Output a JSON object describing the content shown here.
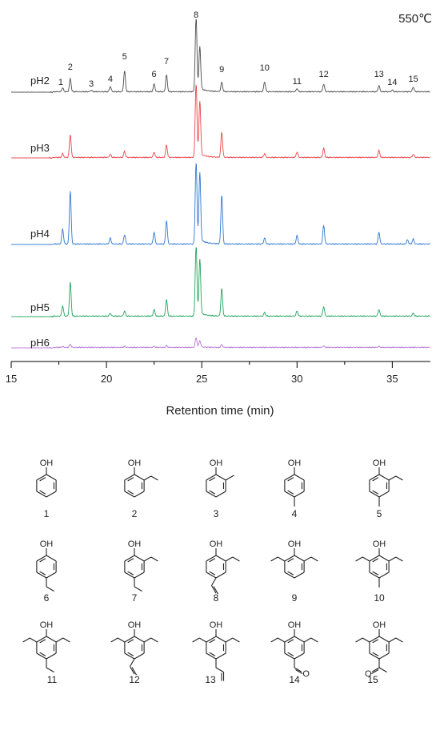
{
  "chart_data": {
    "type": "line",
    "title": "550℃",
    "xlabel": "Retention time (min)",
    "ylabel": "",
    "xlim": [
      15,
      37
    ],
    "x_ticks": [
      15,
      20,
      25,
      30,
      35
    ],
    "grid": false,
    "legend": "labels beside each trace",
    "series": [
      {
        "name": "pH2",
        "color": "#4d4d4d",
        "peaks": [
          {
            "x": 17.7,
            "h": 0.05
          },
          {
            "x": 18.1,
            "h": 0.17
          },
          {
            "x": 19.2,
            "h": 0.02
          },
          {
            "x": 20.2,
            "h": 0.07
          },
          {
            "x": 20.95,
            "h": 0.27
          },
          {
            "x": 22.5,
            "h": 0.1
          },
          {
            "x": 23.15,
            "h": 0.22
          },
          {
            "x": 24.7,
            "h": 0.95
          },
          {
            "x": 24.9,
            "h": 0.55
          },
          {
            "x": 26.05,
            "h": 0.12
          },
          {
            "x": 28.3,
            "h": 0.13
          },
          {
            "x": 30.0,
            "h": 0.04
          },
          {
            "x": 31.4,
            "h": 0.1
          },
          {
            "x": 34.3,
            "h": 0.08
          },
          {
            "x": 35.0,
            "h": 0.02
          },
          {
            "x": 36.1,
            "h": 0.06
          }
        ]
      },
      {
        "name": "pH3",
        "color": "#e8454a",
        "peaks": [
          {
            "x": 17.7,
            "h": 0.05
          },
          {
            "x": 18.1,
            "h": 0.3
          },
          {
            "x": 20.2,
            "h": 0.04
          },
          {
            "x": 20.95,
            "h": 0.08
          },
          {
            "x": 22.5,
            "h": 0.07
          },
          {
            "x": 23.15,
            "h": 0.16
          },
          {
            "x": 24.7,
            "h": 0.95
          },
          {
            "x": 24.9,
            "h": 0.7
          },
          {
            "x": 26.05,
            "h": 0.33
          },
          {
            "x": 28.3,
            "h": 0.05
          },
          {
            "x": 30.0,
            "h": 0.07
          },
          {
            "x": 31.4,
            "h": 0.12
          },
          {
            "x": 34.3,
            "h": 0.09
          },
          {
            "x": 36.1,
            "h": 0.04
          }
        ]
      },
      {
        "name": "pH4",
        "color": "#2e78d2",
        "peaks": [
          {
            "x": 17.7,
            "h": 0.18
          },
          {
            "x": 18.1,
            "h": 0.63
          },
          {
            "x": 20.2,
            "h": 0.07
          },
          {
            "x": 20.95,
            "h": 0.11
          },
          {
            "x": 22.5,
            "h": 0.14
          },
          {
            "x": 23.15,
            "h": 0.28
          },
          {
            "x": 24.7,
            "h": 0.95
          },
          {
            "x": 24.9,
            "h": 0.8
          },
          {
            "x": 26.05,
            "h": 0.58
          },
          {
            "x": 28.3,
            "h": 0.07
          },
          {
            "x": 30.0,
            "h": 0.1
          },
          {
            "x": 31.4,
            "h": 0.22
          },
          {
            "x": 34.3,
            "h": 0.14
          },
          {
            "x": 35.8,
            "h": 0.05
          },
          {
            "x": 36.1,
            "h": 0.06
          }
        ]
      },
      {
        "name": "pH5",
        "color": "#22a55c",
        "peaks": [
          {
            "x": 17.7,
            "h": 0.14
          },
          {
            "x": 18.1,
            "h": 0.47
          },
          {
            "x": 20.2,
            "h": 0.04
          },
          {
            "x": 20.95,
            "h": 0.07
          },
          {
            "x": 22.5,
            "h": 0.09
          },
          {
            "x": 23.15,
            "h": 0.23
          },
          {
            "x": 24.7,
            "h": 0.95
          },
          {
            "x": 24.9,
            "h": 0.75
          },
          {
            "x": 26.05,
            "h": 0.38
          },
          {
            "x": 28.3,
            "h": 0.05
          },
          {
            "x": 30.0,
            "h": 0.07
          },
          {
            "x": 31.4,
            "h": 0.13
          },
          {
            "x": 34.3,
            "h": 0.09
          },
          {
            "x": 36.1,
            "h": 0.04
          }
        ]
      },
      {
        "name": "pH6",
        "color": "#b877d6",
        "peaks": [
          {
            "x": 17.7,
            "h": 0.03
          },
          {
            "x": 18.1,
            "h": 0.1
          },
          {
            "x": 20.95,
            "h": 0.03
          },
          {
            "x": 22.5,
            "h": 0.03
          },
          {
            "x": 23.15,
            "h": 0.06
          },
          {
            "x": 24.7,
            "h": 0.3
          },
          {
            "x": 24.9,
            "h": 0.2
          },
          {
            "x": 26.05,
            "h": 0.09
          },
          {
            "x": 31.4,
            "h": 0.05
          },
          {
            "x": 34.3,
            "h": 0.03
          }
        ]
      }
    ],
    "peak_labels": [
      {
        "label": "1",
        "x": 17.6
      },
      {
        "label": "2",
        "x": 18.1
      },
      {
        "label": "3",
        "x": 19.2
      },
      {
        "label": "4",
        "x": 20.2
      },
      {
        "label": "5",
        "x": 20.95
      },
      {
        "label": "6",
        "x": 22.5
      },
      {
        "label": "7",
        "x": 23.15
      },
      {
        "label": "8",
        "x": 24.7
      },
      {
        "label": "9",
        "x": 26.05
      },
      {
        "label": "10",
        "x": 28.3
      },
      {
        "label": "11",
        "x": 30.0
      },
      {
        "label": "12",
        "x": 31.4
      },
      {
        "label": "13",
        "x": 34.3
      },
      {
        "label": "14",
        "x": 35.0
      },
      {
        "label": "15",
        "x": 36.1
      }
    ]
  },
  "structures": [
    {
      "number": "1"
    },
    {
      "number": "2"
    },
    {
      "number": "3"
    },
    {
      "number": "4"
    },
    {
      "number": "5"
    },
    {
      "number": "6"
    },
    {
      "number": "7"
    },
    {
      "number": "8"
    },
    {
      "number": "9"
    },
    {
      "number": "10"
    },
    {
      "number": "11"
    },
    {
      "number": "12"
    },
    {
      "number": "13"
    },
    {
      "number": "14"
    },
    {
      "number": "15"
    }
  ],
  "structure_text": {
    "hydroxyl": "OH",
    "carbonyl_oxygen": "O"
  }
}
